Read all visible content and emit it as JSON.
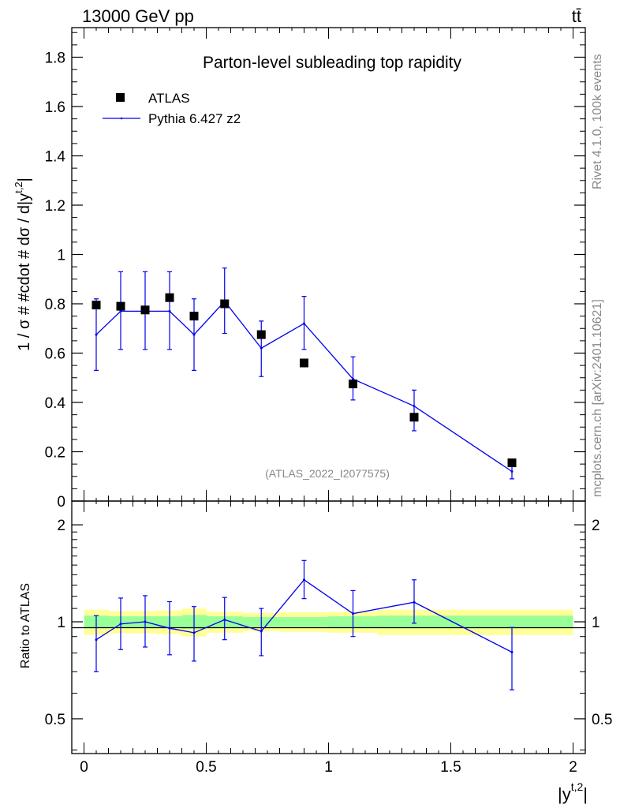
{
  "header": {
    "energy_label": "13000 GeV pp",
    "process_label": "tt̄"
  },
  "side_labels": {
    "rivet": "Rivet 4.1.0,  100k events",
    "mcplots": "mcplots.cern.ch [arXiv:2401.10621]"
  },
  "analysis_id": "(ATLAS_2022_I2077575)",
  "colors": {
    "mc": "#0000ee",
    "band_inner": "#99ff99",
    "band_outer": "#ffff99",
    "data": "#000000",
    "watermark": "#888888"
  },
  "chart_data": [
    {
      "type": "scatter",
      "title": "Parton-level subleading top rapidity",
      "ylabel": "1 / σ # #cdot # dσ / d|y",
      "ylabel_sup": "t,2",
      "ylabel_tail": "|",
      "ylim": [
        0,
        1.92
      ],
      "yticks": [
        0,
        0.2,
        0.4,
        0.6,
        0.8,
        1,
        1.2,
        1.4,
        1.6,
        1.8
      ],
      "ytick_labels": [
        "0",
        "0.2",
        "0.4",
        "0.6",
        "0.8",
        "1",
        "1.2",
        "1.4",
        "1.6",
        "1.8"
      ],
      "xlim": [
        -0.05,
        2.05
      ],
      "legend": [
        "ATLAS",
        "Pythia 6.427 z2"
      ],
      "legend_position": "top-left",
      "series": [
        {
          "name": "ATLAS",
          "marker": "square",
          "x": [
            0.05,
            0.15,
            0.25,
            0.35,
            0.45,
            0.575,
            0.725,
            0.9,
            1.1,
            1.35,
            1.75
          ],
          "y": [
            0.795,
            0.79,
            0.775,
            0.825,
            0.75,
            0.8,
            0.675,
            0.56,
            0.475,
            0.34,
            0.155
          ]
        },
        {
          "name": "Pythia 6.427 z2",
          "marker": "line",
          "x": [
            0.05,
            0.15,
            0.25,
            0.35,
            0.45,
            0.575,
            0.725,
            0.9,
            1.1,
            1.35,
            1.75
          ],
          "y": [
            0.675,
            0.77,
            0.77,
            0.77,
            0.675,
            0.81,
            0.62,
            0.72,
            0.495,
            0.385,
            0.12
          ],
          "err_low": [
            0.145,
            0.155,
            0.155,
            0.155,
            0.145,
            0.13,
            0.115,
            0.105,
            0.085,
            0.1,
            0.03
          ],
          "err_high": [
            0.145,
            0.16,
            0.16,
            0.16,
            0.145,
            0.135,
            0.11,
            0.11,
            0.09,
            0.065,
            0.02
          ]
        }
      ]
    },
    {
      "type": "line",
      "ylabel": "Ratio to ATLAS",
      "xlabel": "|y",
      "xlabel_sup": "t,2",
      "xlabel_tail": "|",
      "ylim": [
        0.39,
        2.37
      ],
      "y_scale": "log",
      "yticks": [
        0.5,
        1,
        2
      ],
      "ytick_labels": [
        "0.5",
        "1",
        "2"
      ],
      "xlim": [
        -0.05,
        2.05
      ],
      "xticks": [
        0,
        0.5,
        1,
        1.5,
        2
      ],
      "xtick_labels": [
        "0",
        "0.5",
        "1",
        "1.5",
        "2"
      ],
      "bands": [
        {
          "x0": 0.0,
          "x1": 0.1,
          "inner": [
            0.955,
            1.045
          ],
          "outer": [
            0.91,
            1.09
          ]
        },
        {
          "x0": 0.1,
          "x1": 0.2,
          "inner": [
            0.96,
            1.04
          ],
          "outer": [
            0.92,
            1.08
          ]
        },
        {
          "x0": 0.2,
          "x1": 0.3,
          "inner": [
            0.96,
            1.04
          ],
          "outer": [
            0.92,
            1.08
          ]
        },
        {
          "x0": 0.3,
          "x1": 0.4,
          "inner": [
            0.96,
            1.04
          ],
          "outer": [
            0.915,
            1.085
          ]
        },
        {
          "x0": 0.4,
          "x1": 0.5,
          "inner": [
            0.95,
            1.05
          ],
          "outer": [
            0.9,
            1.1
          ]
        },
        {
          "x0": 0.5,
          "x1": 0.65,
          "inner": [
            0.96,
            1.04
          ],
          "outer": [
            0.925,
            1.075
          ]
        },
        {
          "x0": 0.65,
          "x1": 0.8,
          "inner": [
            0.965,
            1.035
          ],
          "outer": [
            0.935,
            1.065
          ]
        },
        {
          "x0": 0.8,
          "x1": 1.0,
          "inner": [
            0.965,
            1.035
          ],
          "outer": [
            0.93,
            1.07
          ]
        },
        {
          "x0": 1.0,
          "x1": 1.2,
          "inner": [
            0.96,
            1.04
          ],
          "outer": [
            0.925,
            1.075
          ]
        },
        {
          "x0": 1.2,
          "x1": 1.5,
          "inner": [
            0.955,
            1.045
          ],
          "outer": [
            0.91,
            1.09
          ]
        },
        {
          "x0": 1.5,
          "x1": 2.0,
          "inner": [
            0.955,
            1.045
          ],
          "outer": [
            0.91,
            1.09
          ]
        }
      ],
      "series": [
        {
          "name": "Pythia 6.427 z2 / ATLAS",
          "x": [
            0.05,
            0.15,
            0.25,
            0.35,
            0.45,
            0.575,
            0.725,
            0.9,
            1.1,
            1.35,
            1.75
          ],
          "y": [
            0.88,
            0.985,
            1.0,
            0.955,
            0.925,
            1.015,
            0.935,
            1.35,
            1.06,
            1.15,
            0.805
          ],
          "err_low": [
            0.18,
            0.165,
            0.165,
            0.165,
            0.17,
            0.135,
            0.15,
            0.17,
            0.16,
            0.16,
            0.19
          ],
          "err_high": [
            0.165,
            0.2,
            0.205,
            0.2,
            0.19,
            0.175,
            0.165,
            0.2,
            0.19,
            0.2,
            0.155
          ]
        }
      ]
    }
  ]
}
